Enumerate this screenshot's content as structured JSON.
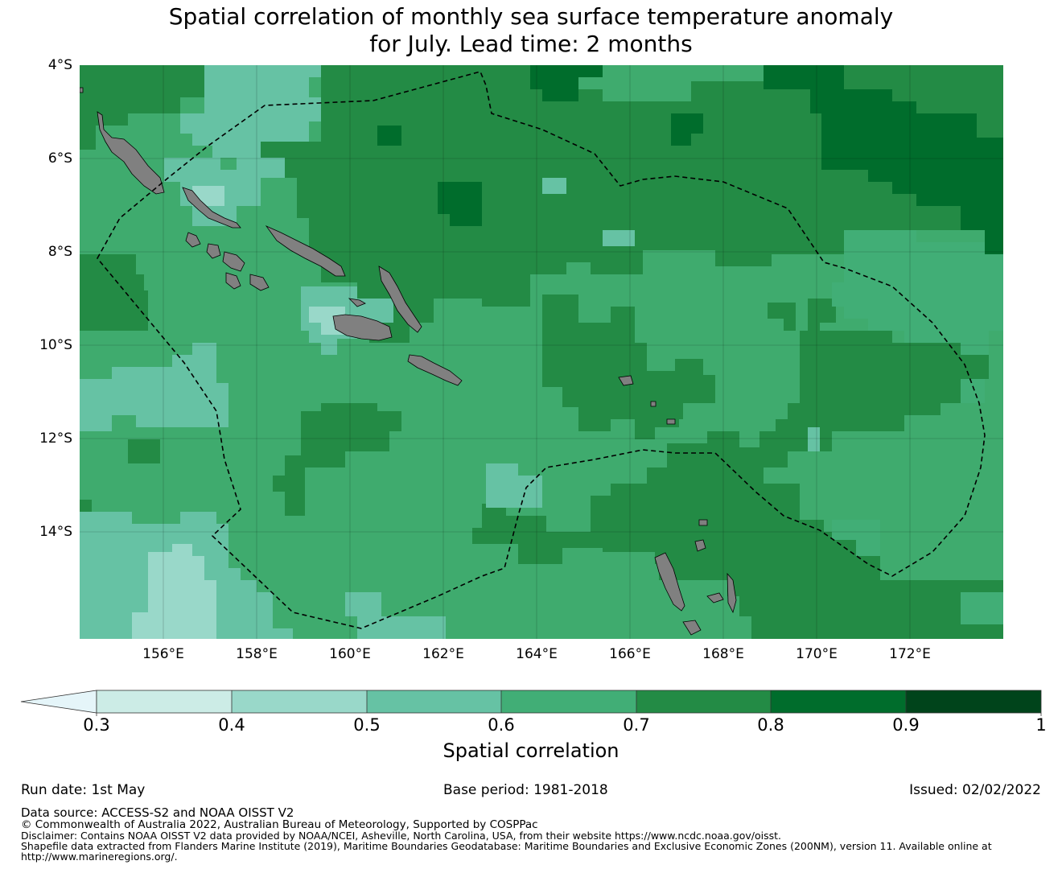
{
  "title": {
    "line1": "Spatial correlation of monthly sea surface temperature anomaly",
    "line2": "for July. Lead time: 2 months"
  },
  "map": {
    "lon_range": [
      154.2,
      174.0
    ],
    "lat_range": [
      -16.3,
      -4.0
    ],
    "lat_ticks": [
      "4°S",
      "6°S",
      "8°S",
      "10°S",
      "12°S",
      "14°S"
    ],
    "lon_ticks": [
      "156°E",
      "158°E",
      "160°E",
      "162°E",
      "164°E",
      "166°E",
      "168°E",
      "170°E",
      "172°E"
    ],
    "grid": true,
    "land_color": "#808080",
    "eez_boundary": "dashed black line"
  },
  "colorbar": {
    "label": "Spatial correlation",
    "ticks": [
      "0.3",
      "0.4",
      "0.5",
      "0.6",
      "0.7",
      "0.8",
      "0.9",
      "1"
    ],
    "colors": [
      "#e5f5f9",
      "#ccece6",
      "#99d8c9",
      "#66c2a4",
      "#41ae76",
      "#238b45",
      "#006d2c",
      "#00441b"
    ]
  },
  "footer": {
    "run_date": "Run date: 1st May",
    "base_period": "Base period: 1981-2018",
    "issued": "Issued: 02/02/2022",
    "data_source": "Data source: ACCESS-S2 and NOAA OISST V2",
    "copyright": "© Commonwealth of Australia 2022, Australian Bureau of Meteorology, Supported by COSPPac",
    "disclaimer": "Disclaimer: Contains NOAA OISST V2 data provided by NOAA/NCEI, Asheville, North Carolina, USA, from their website https://www.ncdc.noaa.gov/oisst.",
    "shapefile_line1": "Shapefile data extracted from Flanders Marine Institute (2019), Maritime Boundaries Geodatabase: Maritime Boundaries and Exclusive Economic Zones (200NM), version 11. Available online at",
    "shapefile_line2": "http://www.marineregions.org/."
  }
}
